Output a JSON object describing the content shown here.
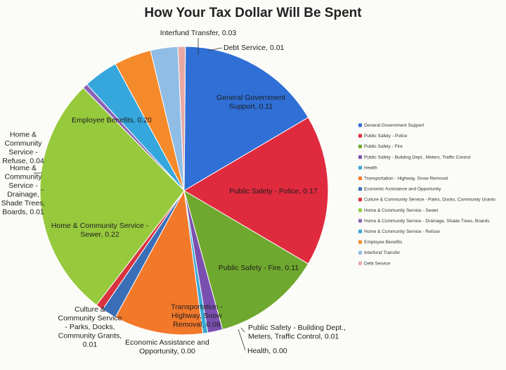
{
  "chart_data": {
    "type": "pie",
    "title": "How Your Tax Dollar Will Be Spent",
    "legend_position": "right",
    "slices": [
      {
        "name": "General Government Support",
        "value": 0.11,
        "color": "#2f6fd6",
        "label_lines": [
          "General Government",
          "Support,  0.11"
        ]
      },
      {
        "name": "Public Safety - Police",
        "value": 0.17,
        "color": "#e02a3e",
        "label_lines": [
          "Public Safety - Police,  0.17"
        ]
      },
      {
        "name": "Public Safety - Fire",
        "value": 0.11,
        "color": "#6fa82e",
        "label_lines": [
          "Public Safety - Fire,  0.11"
        ]
      },
      {
        "name": "Public Safety - Building Dept., Meters, Traffic Control",
        "value": 0.01,
        "color": "#7b4fb0",
        "label_lines": [
          "Public Safety - Building Dept.,",
          "Meters, Traffic Control,  0.01"
        ]
      },
      {
        "name": "Health",
        "value": 0.0,
        "color": "#39a9d6",
        "label_lines": [
          "Health,  0.00"
        ]
      },
      {
        "name": "Transportation - Highway, Snow Removal",
        "value": 0.08,
        "color": "#f2782a",
        "label_lines": [
          "Transportation -",
          "Highway,  Snow",
          "Removal,  0.08"
        ]
      },
      {
        "name": "Economic Assistance and Opportunity",
        "value": 0.0,
        "color": "#3a6fb8",
        "label_lines": [
          "Economic Assistance and",
          "Opportunity,  0.00"
        ]
      },
      {
        "name": "Culture & Community Service - Parks, Docks, Community Grants",
        "value": 0.01,
        "color": "#d8333f",
        "label_lines": [
          "Culture &",
          "Community Service",
          "- Parks, Docks,",
          "Community Grants,",
          "0.01"
        ]
      },
      {
        "name": "Home & Community Service  - Sewer",
        "value": 0.22,
        "color": "#97c93d",
        "label_lines": [
          "Home & Community Service  -",
          "Sewer,  0.22"
        ]
      },
      {
        "name": "Home & Community Service  - Drainage, Shade Trees, Boards",
        "value": 0.01,
        "color": "#8a63b8",
        "label_lines": [
          "Home &",
          "Community",
          "Service  -",
          "Drainage,",
          "Shade Trees,",
          "Boards,  0.01"
        ]
      },
      {
        "name": "Home & Community Service  - Refuse",
        "value": 0.04,
        "color": "#36a7dc",
        "label_lines": [
          "Home &",
          "Community",
          "Service  -",
          "Refuse,  0.04"
        ]
      },
      {
        "name": "Employee Benefits",
        "value": 0.2,
        "color": "#f58a2b",
        "label_lines": [
          "Employee Benefits,  0.20"
        ]
      },
      {
        "name": "Interfund Transfer",
        "value": 0.03,
        "color": "#8fbde6",
        "label_lines": [
          "Interfund Transfer,  0.03"
        ]
      },
      {
        "name": "Debt Service",
        "value": 0.01,
        "color": "#e8a9a5",
        "label_lines": [
          "Debt Service,  0.01"
        ]
      }
    ]
  }
}
